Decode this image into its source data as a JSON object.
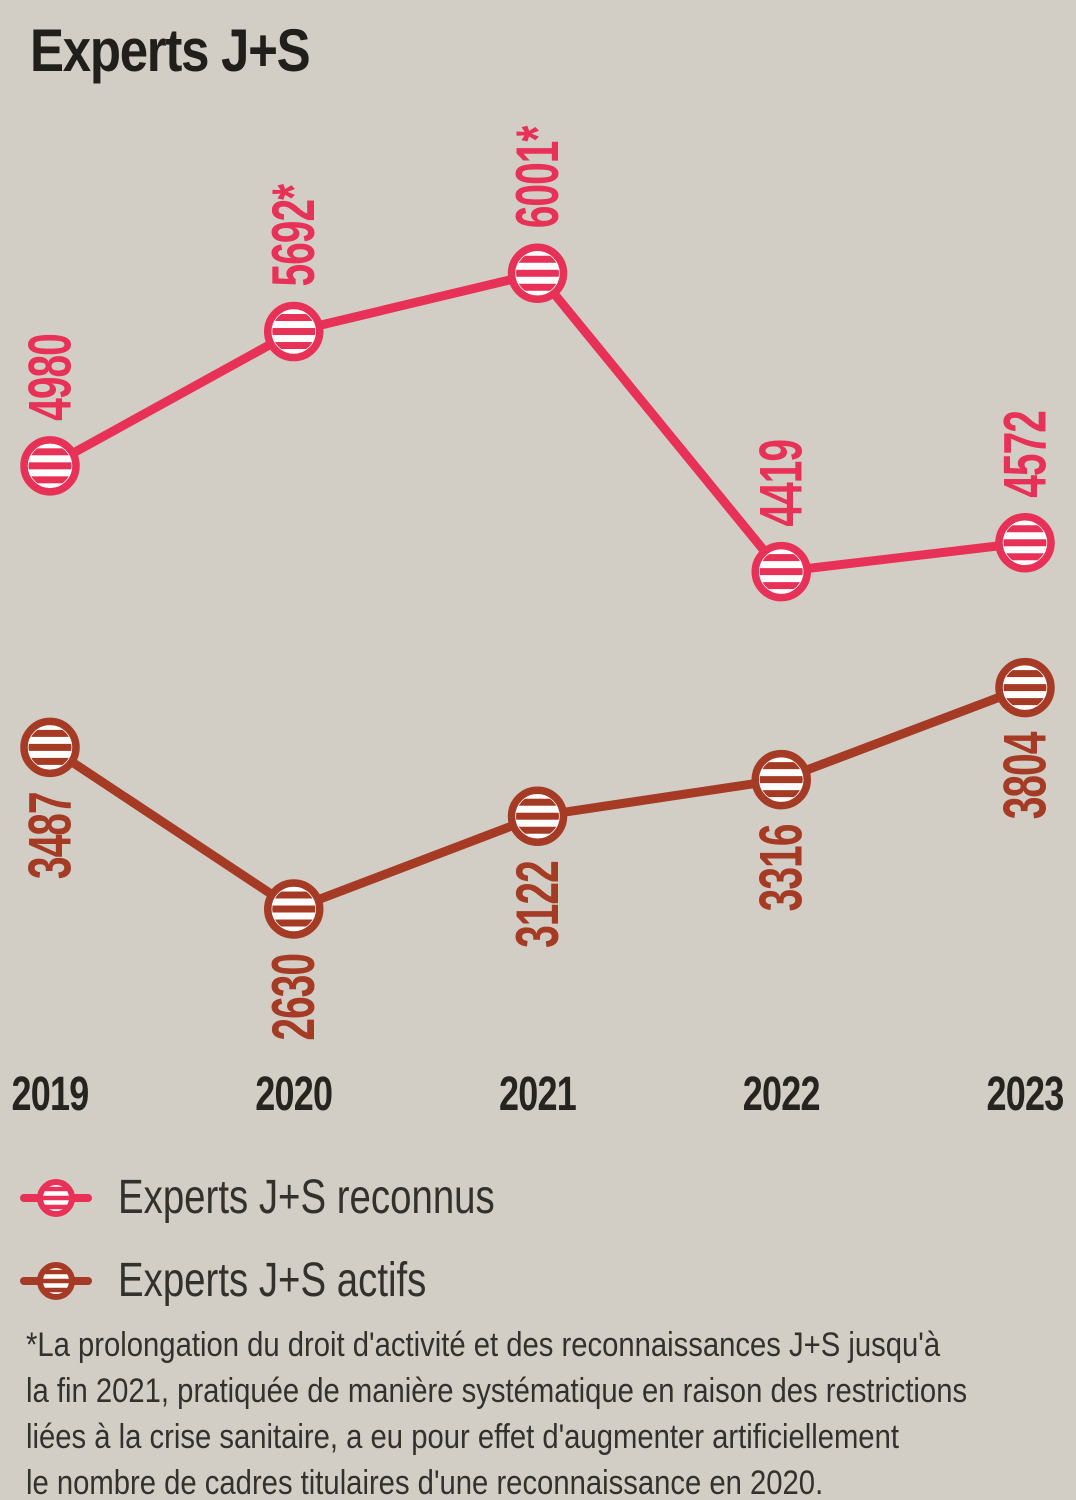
{
  "chart_data": {
    "type": "line",
    "title": "Experts J+S",
    "categories": [
      "2019",
      "2020",
      "2021",
      "2022",
      "2023"
    ],
    "series": [
      {
        "key": "reconnus",
        "name": "Experts J+S reconnus",
        "color": "#e73156",
        "values": [
          4980,
          5692,
          6001,
          4419,
          4572
        ],
        "point_labels": [
          "4980",
          "5692*",
          "6001*",
          "4419",
          "4572"
        ],
        "label_side": "above"
      },
      {
        "key": "actifs",
        "name": "Experts J+S actifs",
        "color": "#a53b25",
        "values": [
          3487,
          2630,
          3122,
          3316,
          3804
        ],
        "point_labels": [
          "3487",
          "2630",
          "3122",
          "3316",
          "3804"
        ],
        "label_side": "below"
      }
    ],
    "ylim": [
      0,
      7450
    ],
    "xlabel": "",
    "ylabel": "",
    "grid": false,
    "marker_style": "striped-circle",
    "point_label_rotation": -90,
    "legend_position": "below-left"
  },
  "legend": {
    "items": [
      {
        "key": "reconnus",
        "label": "Experts J+S reconnus",
        "color": "#e73156"
      },
      {
        "key": "actifs",
        "label": "Experts J+S actifs",
        "color": "#a53b25"
      }
    ]
  },
  "footnote": "*La prolongation du droit d'activité et des reconnaissances J+S jusqu'à\nla fin 2021, pratiquée de manière systématique en raison des restrictions\nliées à la crise sanitaire, a eu pour effet d'augmenter artificiellement\nle nombre de cadres titulaires d'une reconnaissance en 2020.",
  "colors": {
    "background": "#d3cec5",
    "title_text": "#201f1b",
    "axis_text": "#25241f",
    "body_text": "#33312b",
    "marker_fill": "#ffffff"
  }
}
